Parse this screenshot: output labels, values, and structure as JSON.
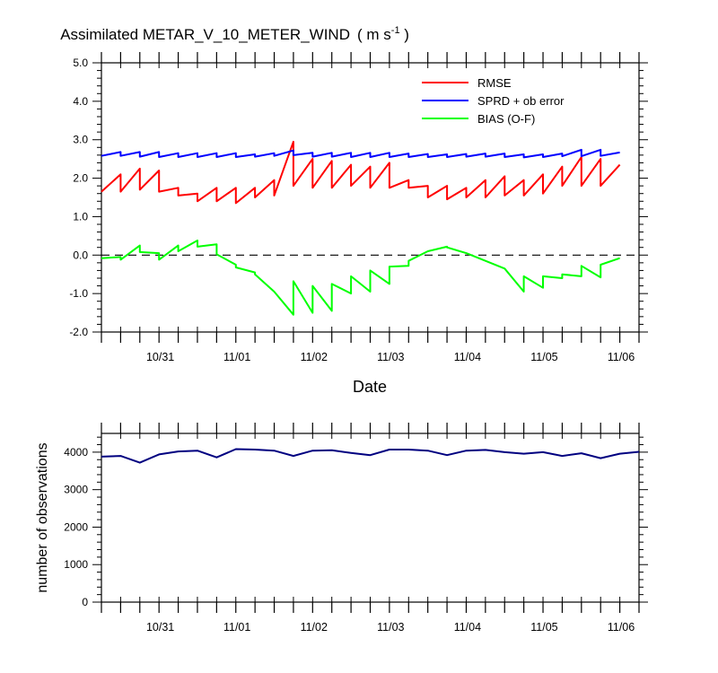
{
  "chart_data": [
    {
      "type": "line",
      "title": "Assimilated METAR_V_10_METER_WIND",
      "title_units": "( m s",
      "title_units_sup": "-1",
      "title_units_close": " )",
      "xlabel": "Date",
      "ylabel": "",
      "xlim": [
        0,
        42
      ],
      "ylim": [
        -2.0,
        5.0
      ],
      "yticks": [
        "5.0",
        "4.0",
        "3.0",
        "2.0",
        "1.0",
        "0.0",
        "-1.0",
        "-2.0"
      ],
      "xtick_labels": [
        "10/31",
        "11/01",
        "11/02",
        "11/03",
        "11/04",
        "11/05",
        "11/06"
      ],
      "xtick_positions": [
        4.6,
        10.6,
        16.6,
        22.6,
        28.6,
        34.6,
        40.6
      ],
      "zero_line": "dashed",
      "legend_placement": "top-right",
      "series": [
        {
          "name": "RMSE",
          "color": "#ff0000",
          "points": [
            [
              0,
              1.65
            ],
            [
              1.5,
              2.1
            ],
            [
              1.5,
              1.65
            ],
            [
              3,
              2.25
            ],
            [
              3,
              1.7
            ],
            [
              4.5,
              2.2
            ],
            [
              4.5,
              1.65
            ],
            [
              6,
              1.75
            ],
            [
              6,
              1.55
            ],
            [
              7.5,
              1.6
            ],
            [
              7.5,
              1.4
            ],
            [
              9,
              1.75
            ],
            [
              9,
              1.4
            ],
            [
              10.5,
              1.75
            ],
            [
              10.5,
              1.35
            ],
            [
              12,
              1.75
            ],
            [
              12,
              1.5
            ],
            [
              13.5,
              1.95
            ],
            [
              13.5,
              1.55
            ],
            [
              15,
              2.95
            ],
            [
              15,
              1.8
            ],
            [
              16.5,
              2.5
            ],
            [
              16.5,
              1.75
            ],
            [
              18,
              2.45
            ],
            [
              18,
              1.75
            ],
            [
              19.5,
              2.35
            ],
            [
              19.5,
              1.8
            ],
            [
              21,
              2.3
            ],
            [
              21,
              1.75
            ],
            [
              22.5,
              2.4
            ],
            [
              22.5,
              1.75
            ],
            [
              24,
              1.95
            ],
            [
              24,
              1.75
            ],
            [
              25.5,
              1.8
            ],
            [
              25.5,
              1.5
            ],
            [
              27,
              1.8
            ],
            [
              27,
              1.45
            ],
            [
              28.5,
              1.75
            ],
            [
              28.5,
              1.5
            ],
            [
              30,
              1.95
            ],
            [
              30,
              1.5
            ],
            [
              31.5,
              2.05
            ],
            [
              31.5,
              1.55
            ],
            [
              33,
              1.95
            ],
            [
              33,
              1.55
            ],
            [
              34.5,
              2.1
            ],
            [
              34.5,
              1.6
            ],
            [
              36,
              2.3
            ],
            [
              36,
              1.8
            ],
            [
              37.5,
              2.55
            ],
            [
              37.5,
              1.8
            ],
            [
              39,
              2.5
            ],
            [
              39,
              1.8
            ],
            [
              40.5,
              2.35
            ]
          ]
        },
        {
          "name": "SPRD + ob error",
          "color": "#0000ff",
          "points": [
            [
              0,
              2.58
            ],
            [
              1.5,
              2.68
            ],
            [
              1.5,
              2.58
            ],
            [
              3,
              2.68
            ],
            [
              3,
              2.56
            ],
            [
              4.5,
              2.68
            ],
            [
              4.5,
              2.55
            ],
            [
              6,
              2.65
            ],
            [
              6,
              2.55
            ],
            [
              7.5,
              2.65
            ],
            [
              7.5,
              2.55
            ],
            [
              9,
              2.65
            ],
            [
              9,
              2.55
            ],
            [
              10.5,
              2.65
            ],
            [
              10.5,
              2.55
            ],
            [
              12,
              2.62
            ],
            [
              12,
              2.56
            ],
            [
              13.5,
              2.65
            ],
            [
              13.5,
              2.58
            ],
            [
              15,
              2.72
            ],
            [
              15,
              2.6
            ],
            [
              16.5,
              2.66
            ],
            [
              16.5,
              2.56
            ],
            [
              18,
              2.66
            ],
            [
              18,
              2.56
            ],
            [
              19.5,
              2.66
            ],
            [
              19.5,
              2.55
            ],
            [
              21,
              2.66
            ],
            [
              21,
              2.55
            ],
            [
              22.5,
              2.66
            ],
            [
              22.5,
              2.55
            ],
            [
              24,
              2.64
            ],
            [
              24,
              2.55
            ],
            [
              25.5,
              2.63
            ],
            [
              25.5,
              2.55
            ],
            [
              27,
              2.62
            ],
            [
              27,
              2.55
            ],
            [
              28.5,
              2.63
            ],
            [
              28.5,
              2.56
            ],
            [
              30,
              2.64
            ],
            [
              30,
              2.56
            ],
            [
              31.5,
              2.64
            ],
            [
              31.5,
              2.55
            ],
            [
              33,
              2.62
            ],
            [
              33,
              2.54
            ],
            [
              34.5,
              2.62
            ],
            [
              34.5,
              2.55
            ],
            [
              36,
              2.64
            ],
            [
              36,
              2.57
            ],
            [
              37.5,
              2.74
            ],
            [
              37.5,
              2.57
            ],
            [
              39,
              2.74
            ],
            [
              39,
              2.58
            ],
            [
              40.5,
              2.67
            ]
          ]
        },
        {
          "name": "BIAS (O-F)",
          "color": "#00ff00",
          "points": [
            [
              0,
              -0.08
            ],
            [
              1.5,
              -0.05
            ],
            [
              1.5,
              -0.12
            ],
            [
              3,
              0.25
            ],
            [
              3,
              0.08
            ],
            [
              4.5,
              0.05
            ],
            [
              4.5,
              -0.12
            ],
            [
              6,
              0.25
            ],
            [
              6,
              0.1
            ],
            [
              7.5,
              0.38
            ],
            [
              7.5,
              0.22
            ],
            [
              9,
              0.28
            ],
            [
              9,
              0.02
            ],
            [
              10.5,
              -0.25
            ],
            [
              10.5,
              -0.32
            ],
            [
              12,
              -0.45
            ],
            [
              12,
              -0.5
            ],
            [
              13.5,
              -0.95
            ],
            [
              13.5,
              -0.95
            ],
            [
              15,
              -1.55
            ],
            [
              15,
              -0.68
            ],
            [
              16.5,
              -1.5
            ],
            [
              16.5,
              -0.8
            ],
            [
              18,
              -1.45
            ],
            [
              18,
              -0.75
            ],
            [
              19.5,
              -1.0
            ],
            [
              19.5,
              -0.55
            ],
            [
              21,
              -0.95
            ],
            [
              21,
              -0.4
            ],
            [
              22.5,
              -0.75
            ],
            [
              22.5,
              -0.3
            ],
            [
              24,
              -0.28
            ],
            [
              24,
              -0.15
            ],
            [
              25.5,
              0.1
            ],
            [
              25.5,
              0.1
            ],
            [
              27,
              0.22
            ],
            [
              27,
              0.2
            ],
            [
              28.5,
              0.05
            ],
            [
              28.5,
              0.05
            ],
            [
              30,
              -0.15
            ],
            [
              30,
              -0.15
            ],
            [
              31.5,
              -0.35
            ],
            [
              31.5,
              -0.35
            ],
            [
              33,
              -0.95
            ],
            [
              33,
              -0.55
            ],
            [
              34.5,
              -0.85
            ],
            [
              34.5,
              -0.55
            ],
            [
              36,
              -0.6
            ],
            [
              36,
              -0.5
            ],
            [
              37.5,
              -0.55
            ],
            [
              37.5,
              -0.28
            ],
            [
              39,
              -0.58
            ],
            [
              39,
              -0.25
            ],
            [
              40.5,
              -0.08
            ]
          ]
        }
      ]
    },
    {
      "type": "line",
      "title": "",
      "xlabel": "",
      "ylabel": "number of observations",
      "xlim": [
        0,
        42
      ],
      "ylim": [
        0,
        4500
      ],
      "yticks": [
        "0",
        "1000",
        "2000",
        "3000",
        "4000"
      ],
      "xtick_labels": [
        "10/31",
        "11/01",
        "11/02",
        "11/03",
        "11/04",
        "11/05",
        "11/06"
      ],
      "xtick_positions": [
        4.6,
        10.6,
        16.6,
        22.6,
        28.6,
        34.6,
        40.6
      ],
      "series": [
        {
          "name": "",
          "color": "#000080",
          "points": [
            [
              0,
              3880
            ],
            [
              1.5,
              3900
            ],
            [
              3,
              3720
            ],
            [
              4.5,
              3940
            ],
            [
              6,
              4020
            ],
            [
              7.5,
              4040
            ],
            [
              9,
              3860
            ],
            [
              10.5,
              4080
            ],
            [
              12,
              4070
            ],
            [
              13.5,
              4040
            ],
            [
              15,
              3900
            ],
            [
              16.5,
              4040
            ],
            [
              18,
              4050
            ],
            [
              19.5,
              3980
            ],
            [
              21,
              3920
            ],
            [
              22.5,
              4070
            ],
            [
              24,
              4070
            ],
            [
              25.5,
              4040
            ],
            [
              27,
              3920
            ],
            [
              28.5,
              4040
            ],
            [
              30,
              4060
            ],
            [
              31.5,
              4000
            ],
            [
              33,
              3960
            ],
            [
              34.5,
              4000
            ],
            [
              36,
              3900
            ],
            [
              37.5,
              3970
            ],
            [
              39,
              3840
            ],
            [
              40.5,
              3960
            ],
            [
              42,
              4010
            ]
          ]
        }
      ]
    }
  ]
}
